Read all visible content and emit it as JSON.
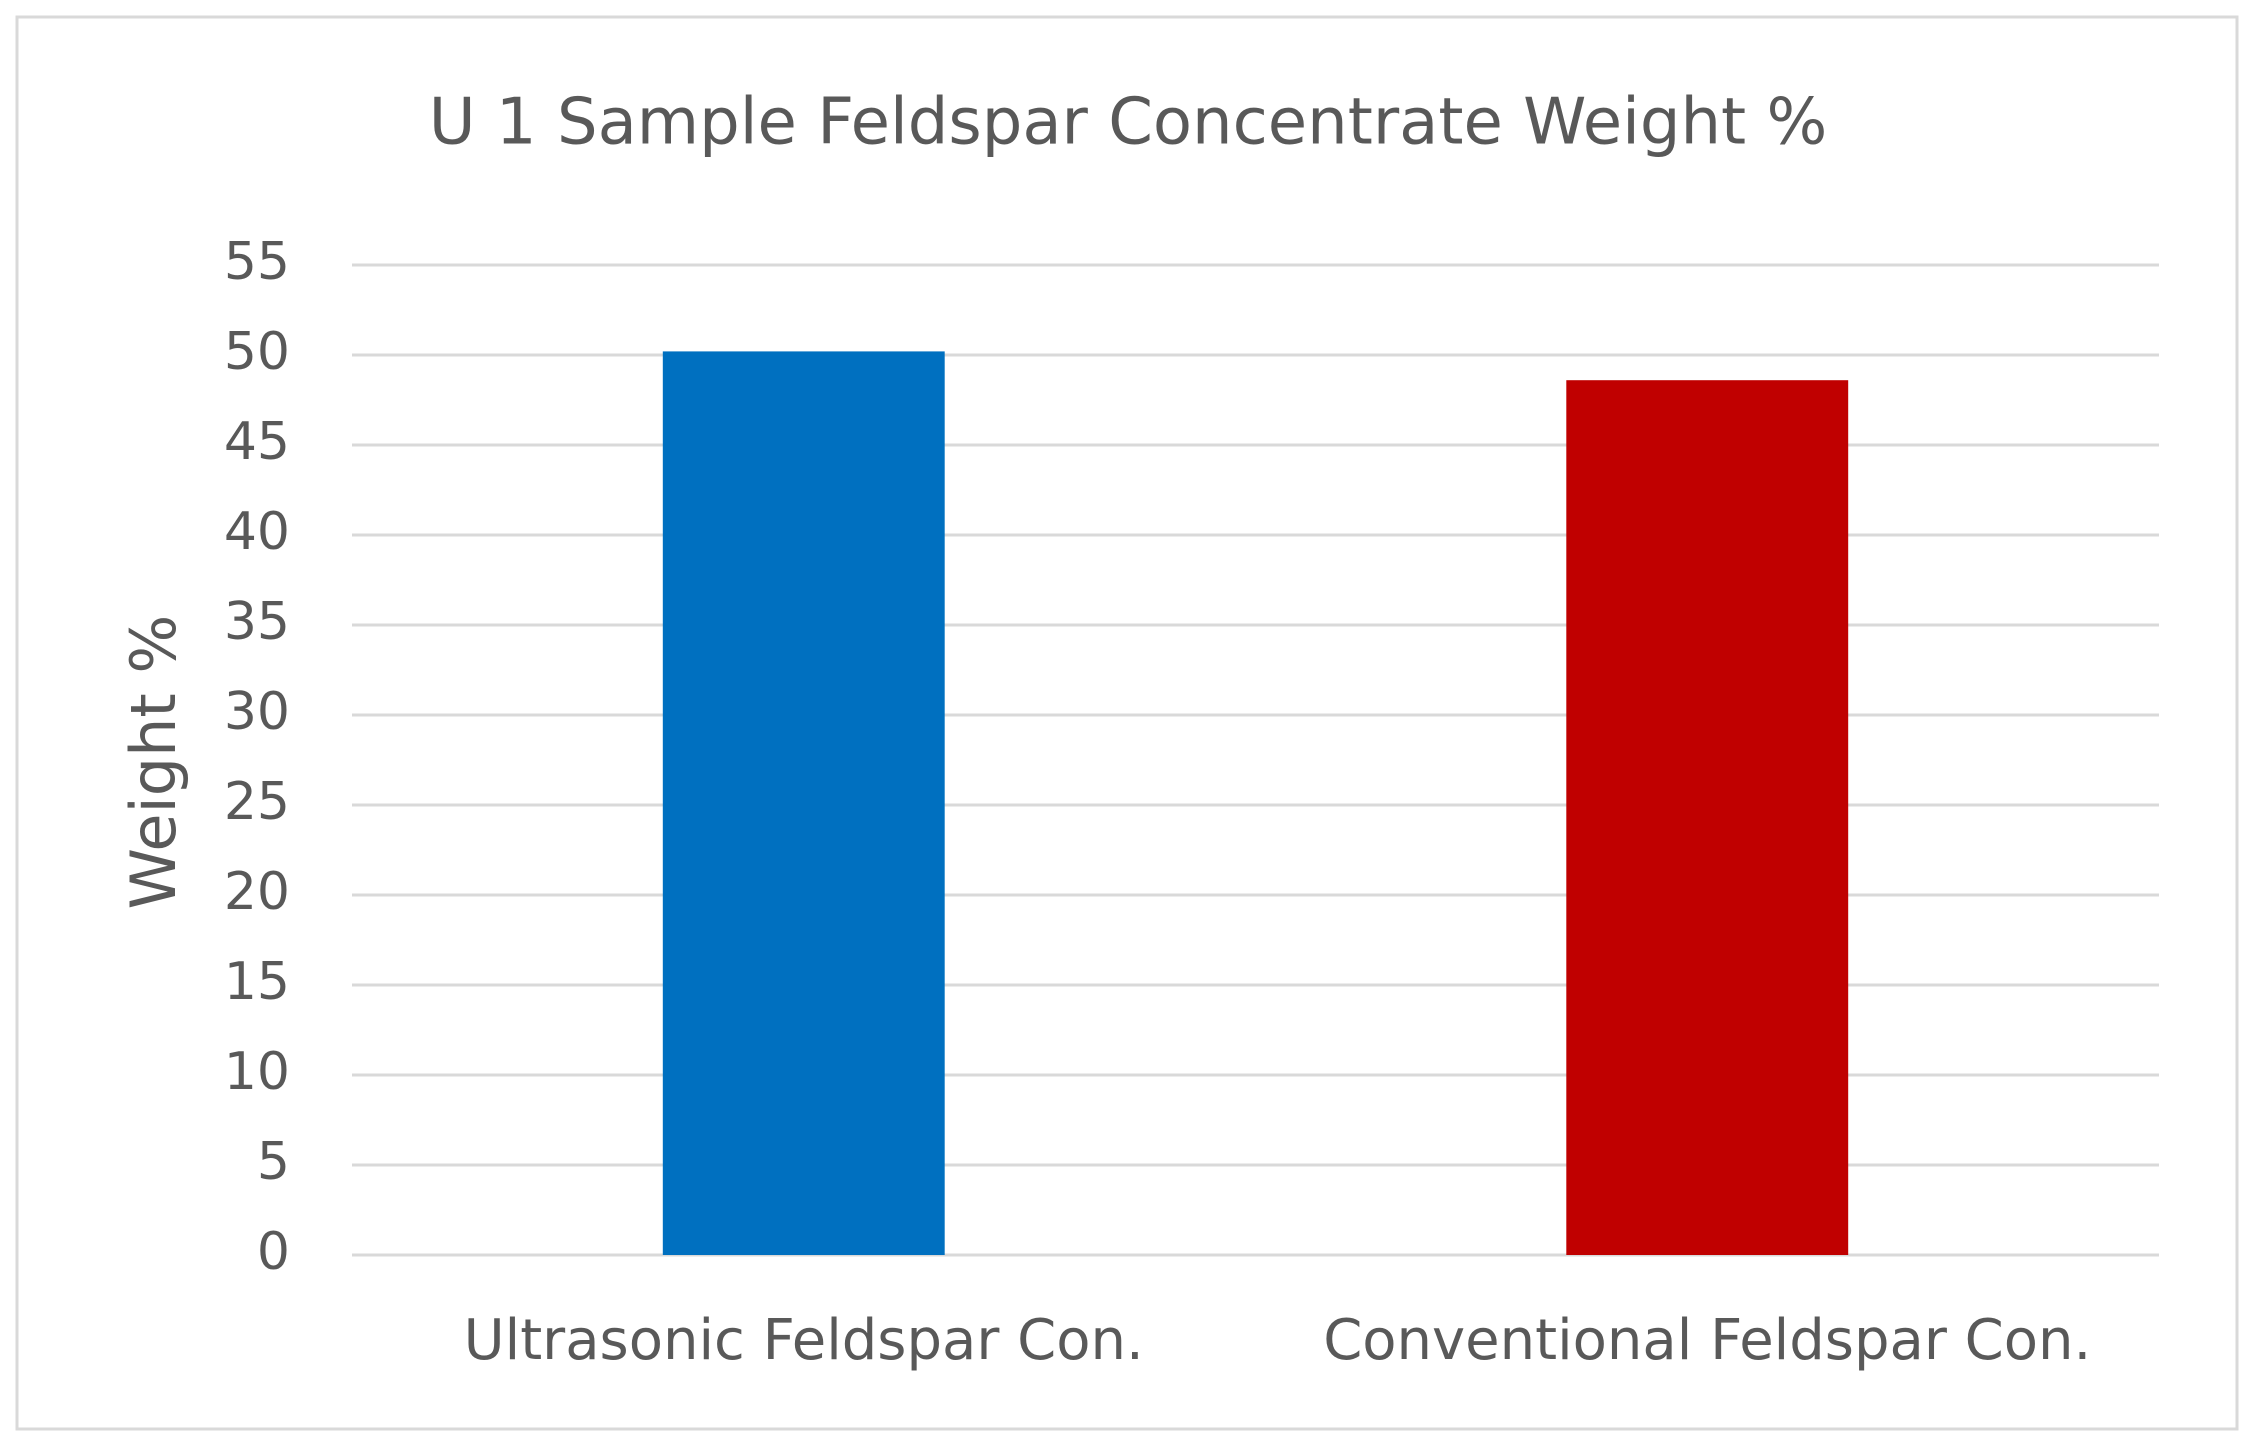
{
  "chart_data": {
    "type": "bar",
    "title": "U 1 Sample Feldspar Concentrate Weight  %",
    "y_label": "Weight %",
    "categories": [
      "Ultrasonic Feldspar Con.",
      "Conventional Feldspar Con."
    ],
    "values": [
      50.2,
      48.6
    ],
    "colors": [
      "#0070c0",
      "#c00000"
    ],
    "ylim": [
      0,
      55
    ],
    "yticks": [
      0,
      5,
      10,
      15,
      20,
      25,
      30,
      35,
      40,
      45,
      50,
      55
    ],
    "grid": true
  }
}
